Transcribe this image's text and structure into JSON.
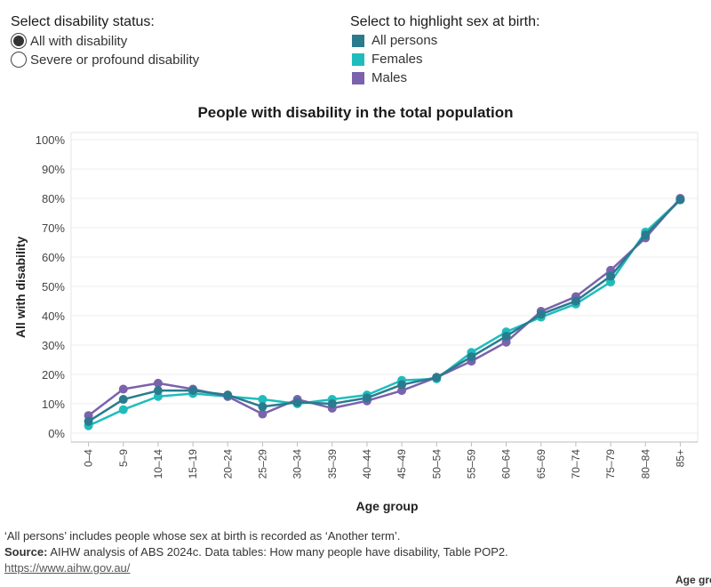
{
  "controls": {
    "status_title": "Select disability status:",
    "status_options": [
      {
        "label": "All with disability",
        "selected": true
      },
      {
        "label": "Severe or profound disability",
        "selected": false
      }
    ],
    "sex_title": "Select to highlight sex at birth:",
    "sex_options": [
      {
        "label": "All persons",
        "color": "#2a7b8e"
      },
      {
        "label": "Females",
        "color": "#1fbcbc"
      },
      {
        "label": "Males",
        "color": "#7b62ad"
      }
    ]
  },
  "chart_data": {
    "type": "line",
    "title": "People with disability in the total population",
    "xlabel": "Age group",
    "ylabel": "All with disability",
    "ylim": [
      0,
      100
    ],
    "yticks": [
      "0%",
      "10%",
      "20%",
      "30%",
      "40%",
      "50%",
      "60%",
      "70%",
      "80%",
      "90%",
      "100%"
    ],
    "grid": true,
    "categories": [
      "0–4",
      "5–9",
      "10–14",
      "15–19",
      "20–24",
      "25–29",
      "30–34",
      "35–39",
      "40–44",
      "45–49",
      "50–54",
      "55–59",
      "60–64",
      "65–69",
      "70–74",
      "75–79",
      "80–84",
      "85+"
    ],
    "series": [
      {
        "name": "Females",
        "color": "#1fbcbc",
        "values": [
          2.5,
          8.0,
          12.5,
          13.5,
          12.5,
          11.5,
          10.0,
          11.5,
          13.0,
          18.0,
          18.5,
          27.5,
          34.5,
          39.5,
          44.0,
          51.5,
          68.5,
          79.5
        ]
      },
      {
        "name": "Males",
        "color": "#7b62ad",
        "values": [
          6.0,
          15.0,
          17.0,
          15.0,
          12.5,
          6.5,
          11.5,
          8.5,
          11.0,
          14.5,
          19.0,
          24.5,
          31.0,
          41.5,
          46.5,
          55.5,
          66.5,
          80.0
        ]
      },
      {
        "name": "All persons",
        "color": "#2a7b8e",
        "values": [
          4.0,
          11.5,
          14.5,
          14.5,
          13.0,
          9.0,
          10.5,
          10.0,
          12.0,
          16.5,
          19.0,
          26.0,
          33.0,
          40.5,
          45.0,
          53.5,
          67.5,
          79.5
        ]
      }
    ]
  },
  "footer": {
    "note": "‘All persons’ includes people whose sex at birth is recorded as ‘Another term’.",
    "source_label": "Source:",
    "source_text": "AIHW analysis of ABS 2024c. Data tables: How many people have disability, Table POP2.",
    "link": "https://www.aihw.gov.au/",
    "corner": "Age gro"
  }
}
